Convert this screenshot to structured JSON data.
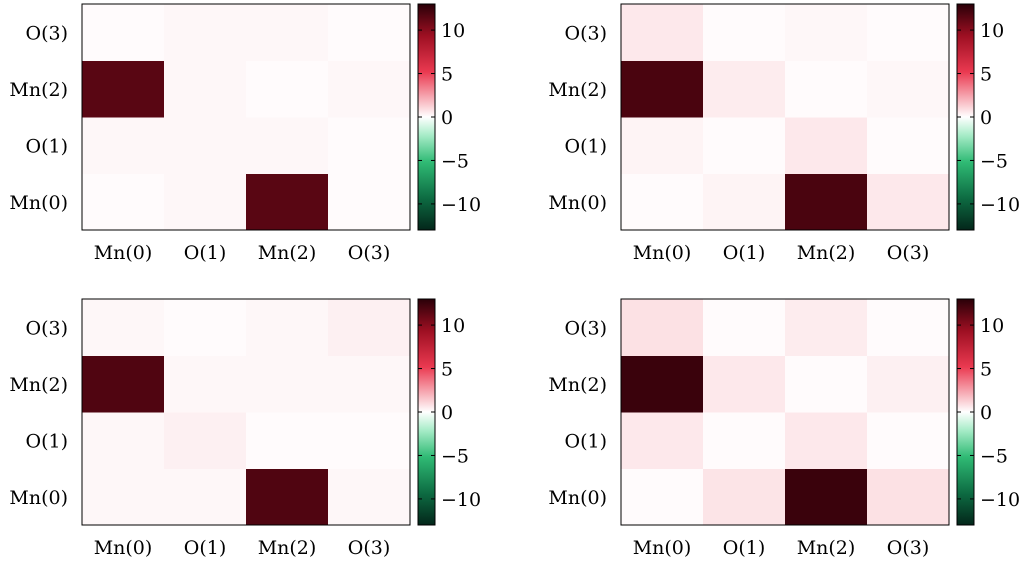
{
  "chart_data": [
    {
      "type": "heatmap",
      "x_categories": [
        "Mn(0)",
        "O(1)",
        "Mn(2)",
        "O(3)"
      ],
      "y_categories": [
        "Mn(0)",
        "O(1)",
        "Mn(2)",
        "O(3)"
      ],
      "values": [
        [
          0.1,
          0.2,
          11.5,
          0.1
        ],
        [
          0.2,
          0.2,
          0.2,
          0.1
        ],
        [
          11.5,
          0.2,
          0.1,
          0.2
        ],
        [
          0.1,
          0.2,
          0.2,
          0.1
        ]
      ],
      "colorbar": {
        "min": -13,
        "max": 13,
        "ticks": [
          10,
          5,
          0,
          -5,
          -10
        ],
        "tick_labels": [
          "10",
          "5",
          "0",
          "−5",
          "−10"
        ]
      },
      "grid": false
    },
    {
      "type": "heatmap",
      "x_categories": [
        "Mn(0)",
        "O(1)",
        "Mn(2)",
        "O(3)"
      ],
      "y_categories": [
        "Mn(0)",
        "O(1)",
        "Mn(2)",
        "O(3)"
      ],
      "values": [
        [
          0.1,
          0.3,
          12.0,
          0.6
        ],
        [
          0.3,
          0.1,
          0.6,
          0.1
        ],
        [
          12.0,
          0.5,
          0.1,
          0.2
        ],
        [
          0.6,
          0.1,
          0.2,
          0.1
        ]
      ],
      "colorbar": {
        "min": -13,
        "max": 13,
        "ticks": [
          10,
          5,
          0,
          -5,
          -10
        ],
        "tick_labels": [
          "10",
          "5",
          "0",
          "−5",
          "−10"
        ]
      },
      "grid": false
    },
    {
      "type": "heatmap",
      "x_categories": [
        "Mn(0)",
        "O(1)",
        "Mn(2)",
        "O(3)"
      ],
      "y_categories": [
        "Mn(0)",
        "O(1)",
        "Mn(2)",
        "O(3)"
      ],
      "values": [
        [
          0.2,
          0.2,
          11.8,
          0.2
        ],
        [
          0.2,
          0.4,
          0.1,
          0.1
        ],
        [
          11.8,
          0.2,
          0.2,
          0.2
        ],
        [
          0.2,
          0.1,
          0.2,
          0.4
        ]
      ],
      "colorbar": {
        "min": -13,
        "max": 13,
        "ticks": [
          10,
          5,
          0,
          -5,
          -10
        ],
        "tick_labels": [
          "10",
          "5",
          "0",
          "−5",
          "−10"
        ]
      },
      "grid": false
    },
    {
      "type": "heatmap",
      "x_categories": [
        "Mn(0)",
        "O(1)",
        "Mn(2)",
        "O(3)"
      ],
      "y_categories": [
        "Mn(0)",
        "O(1)",
        "Mn(2)",
        "O(3)"
      ],
      "values": [
        [
          0.1,
          0.7,
          12.5,
          0.8
        ],
        [
          0.6,
          0.1,
          0.6,
          0.1
        ],
        [
          12.5,
          0.6,
          0.1,
          0.4
        ],
        [
          0.8,
          0.1,
          0.5,
          0.1
        ]
      ],
      "colorbar": {
        "min": -13,
        "max": 13,
        "ticks": [
          10,
          5,
          0,
          -5,
          -10
        ],
        "tick_labels": [
          "10",
          "5",
          "0",
          "−5",
          "−10"
        ]
      },
      "grid": false
    }
  ]
}
